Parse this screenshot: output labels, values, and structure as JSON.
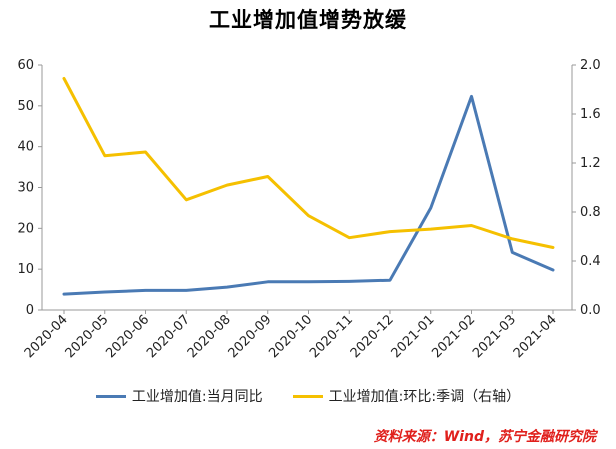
{
  "chart_data": {
    "type": "line",
    "title": "工业增加值增势放缓",
    "categories": [
      "2020-04",
      "2020-05",
      "2020-06",
      "2020-07",
      "2020-08",
      "2020-09",
      "2020-10",
      "2020-11",
      "2020-12",
      "2021-01",
      "2021-02",
      "2021-03",
      "2021-04"
    ],
    "series": [
      {
        "name": "工业增加值:当月同比",
        "axis": "left",
        "color": "#4a7ab4",
        "values": [
          3.9,
          4.4,
          4.8,
          4.8,
          5.6,
          6.9,
          6.9,
          7.0,
          7.3,
          25.0,
          52.3,
          14.1,
          9.8
        ]
      },
      {
        "name": "工业增加值:环比:季调（右轴）",
        "axis": "right",
        "color": "#f5c000",
        "values": [
          1.89,
          1.26,
          1.29,
          0.9,
          1.02,
          1.09,
          0.77,
          0.59,
          0.64,
          0.66,
          0.69,
          0.58,
          0.51
        ]
      }
    ],
    "y_left": {
      "min": 0,
      "max": 60,
      "ticks": [
        "0",
        "10",
        "20",
        "30",
        "40",
        "50",
        "60"
      ]
    },
    "y_right": {
      "min": 0,
      "max": 2.0,
      "ticks": [
        "0.0",
        "0.4",
        "0.8",
        "1.2",
        "1.6",
        "2.0"
      ]
    },
    "grid": false,
    "legend_position": "bottom"
  },
  "source": "资料来源：Wind，苏宁金融研究院"
}
